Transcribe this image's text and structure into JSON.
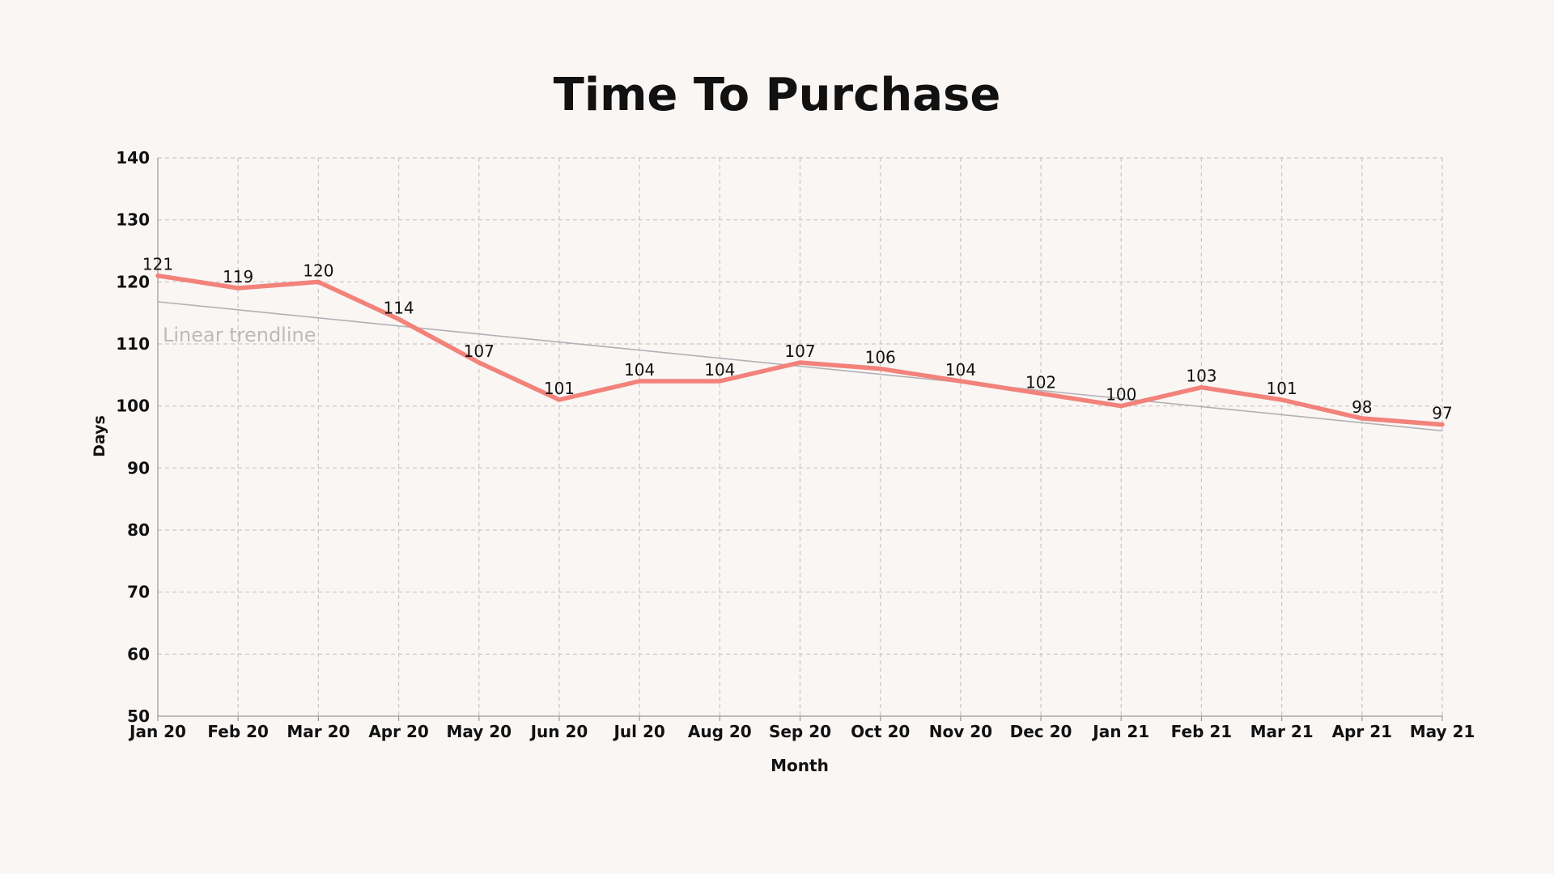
{
  "chart_data": {
    "type": "line",
    "title": "Time To Purchase",
    "xlabel": "Month",
    "ylabel": "Days",
    "ylim": [
      50,
      140
    ],
    "yticks": [
      50,
      60,
      70,
      80,
      90,
      100,
      110,
      120,
      130,
      140
    ],
    "grid": true,
    "categories": [
      "Jan 20",
      "Feb 20",
      "Mar 20",
      "Apr 20",
      "May 20",
      "Jun 20",
      "Jul 20",
      "Aug 20",
      "Sep 20",
      "Oct 20",
      "Nov 20",
      "Dec 20",
      "Jan 21",
      "Feb 21",
      "Mar 21",
      "Apr 21",
      "May 21"
    ],
    "series": [
      {
        "values": [
          121,
          119,
          120,
          114,
          107,
          101,
          104,
          104,
          107,
          106,
          104,
          102,
          100,
          103,
          101,
          98,
          97
        ],
        "color": "#f2827a",
        "data_labels": true
      }
    ],
    "trendline": {
      "label": "Linear trendline",
      "start_value": 116.8,
      "end_value": 96.0,
      "color": "#b3b0b5",
      "label_color": "#bdbabd"
    },
    "colors": {
      "background": "#f9f6f4",
      "grid": "#c9c6c4",
      "axis": "#999999",
      "text": "#111111"
    }
  }
}
